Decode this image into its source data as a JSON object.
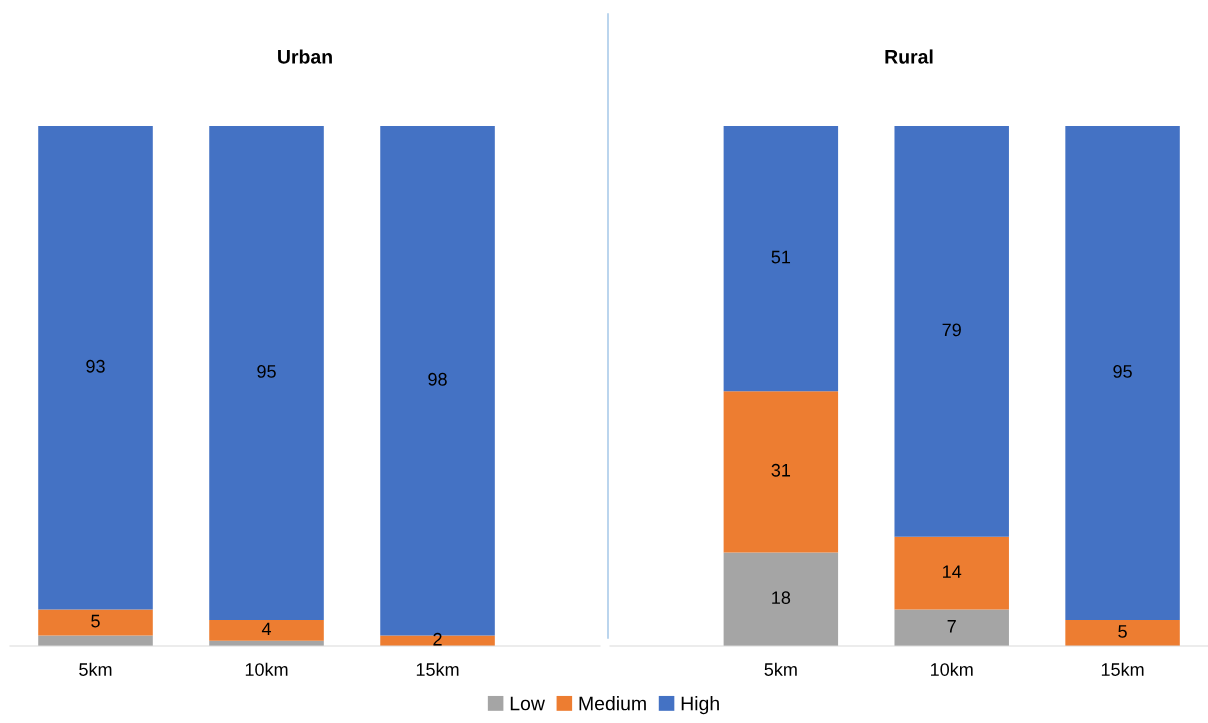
{
  "chart_data": [
    {
      "type": "bar",
      "title": "Urban",
      "categories": [
        "5km",
        "10km",
        "15km"
      ],
      "stacked": true,
      "ylim": [
        0,
        100
      ],
      "tick_labels": "x",
      "legend": "bottom",
      "grid": false,
      "series": [
        {
          "name": "Low",
          "color": "#a5a5a5",
          "values": [
            2,
            1,
            0
          ],
          "value_labels": [
            null,
            null,
            null
          ]
        },
        {
          "name": "Medium",
          "color": "#ed7d31",
          "values": [
            5,
            4,
            2
          ],
          "value_labels": [
            "5",
            "4",
            "2"
          ]
        },
        {
          "name": "High",
          "color": "#4472c4",
          "values": [
            93,
            95,
            98
          ],
          "value_labels": [
            "93",
            "95",
            "98"
          ]
        }
      ]
    },
    {
      "type": "bar",
      "title": "Rural",
      "categories": [
        "5km",
        "10km",
        "15km"
      ],
      "stacked": true,
      "ylim": [
        0,
        100
      ],
      "tick_labels": "x",
      "grid": false,
      "series": [
        {
          "color": "#a5a5a5",
          "values": [
            18,
            7,
            0
          ],
          "value_labels": [
            "18",
            "7",
            null
          ]
        },
        {
          "color": "#ed7d31",
          "values": [
            31,
            14,
            5
          ],
          "value_labels": [
            "31",
            "14",
            "5"
          ]
        },
        {
          "color": "#4472c4",
          "values": [
            51,
            79,
            95
          ],
          "value_labels": [
            "51",
            "79",
            "95"
          ]
        }
      ]
    }
  ]
}
